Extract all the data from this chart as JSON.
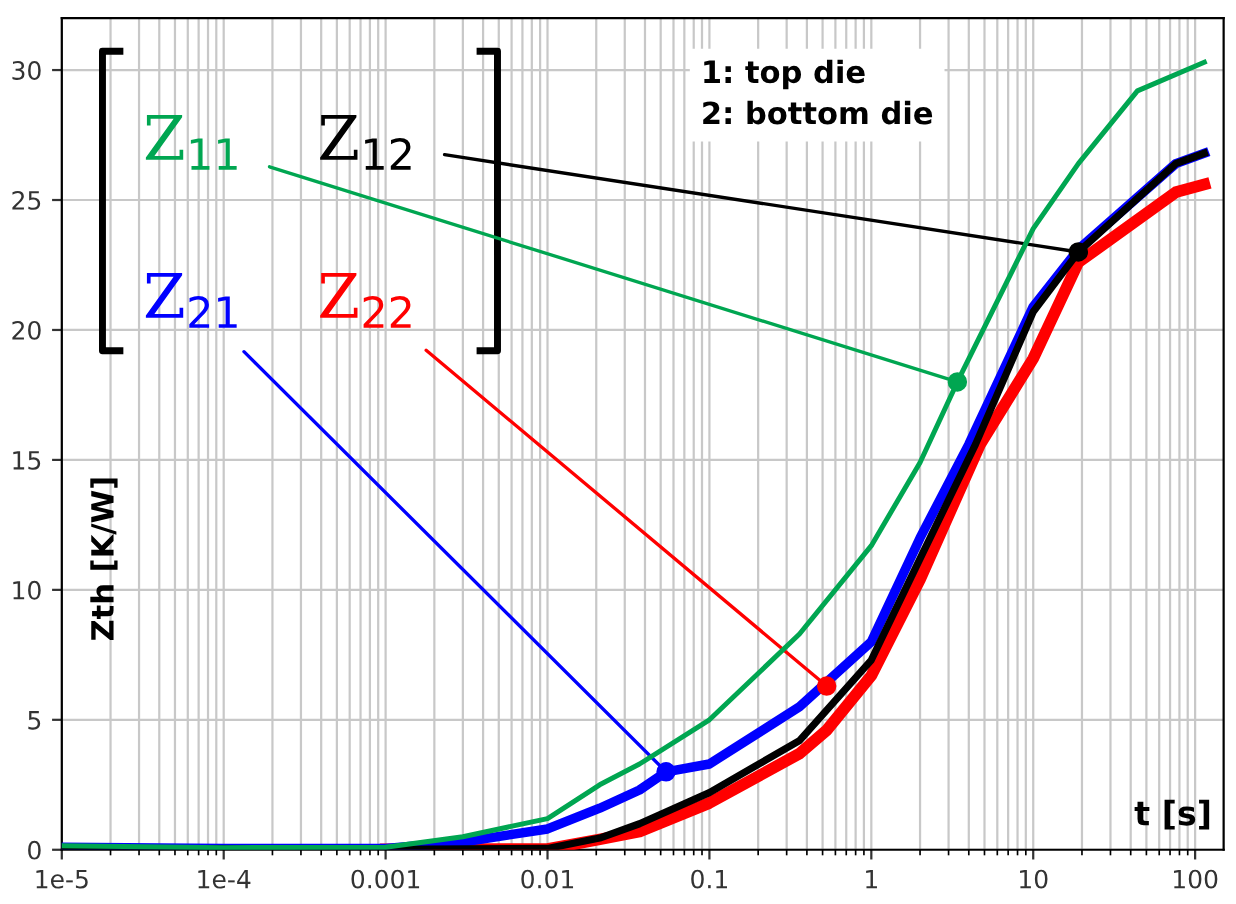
{
  "chart_data": {
    "type": "line",
    "log": "x",
    "grid": true,
    "xlabel": "t [s]",
    "ylabel": "Zth [K/W]",
    "xlim": [
      1e-05,
      150
    ],
    "ylim": [
      0,
      32
    ],
    "xticks": [
      {
        "value": 1e-05,
        "label": "1e-5"
      },
      {
        "value": 0.0001,
        "label": "1e-4"
      },
      0.001,
      0.01,
      0.1,
      1,
      10,
      100
    ],
    "yticks": [
      0,
      5,
      10,
      15,
      20,
      25,
      30
    ],
    "series": [
      {
        "color": "#00a651",
        "x": [
          1e-05,
          0.0001,
          0.001,
          0.003,
          0.01,
          0.021,
          0.037,
          0.1,
          0.36,
          1,
          2,
          3.4,
          10,
          19,
          44,
          114
        ],
        "values": [
          0.15,
          0.08,
          0.1,
          0.5,
          1.2,
          2.5,
          3.3,
          5.0,
          8.3,
          11.7,
          14.9,
          18.0,
          23.9,
          26.4,
          29.2,
          30.3
        ]
      },
      {
        "color": "#000000",
        "x": [
          1e-05,
          0.0001,
          0.001,
          0.01,
          0.021,
          0.037,
          0.1,
          0.36,
          1,
          2,
          4.4,
          5.6,
          10,
          19,
          76,
          114
        ],
        "values": [
          0.05,
          0.03,
          0.02,
          0.05,
          0.45,
          1.0,
          2.2,
          4.2,
          7.3,
          11.2,
          15.6,
          17.1,
          20.7,
          23.0,
          26.4,
          26.8
        ]
      },
      {
        "color": "#0000ff",
        "x": [
          1e-05,
          0.0001,
          0.001,
          0.003,
          0.01,
          0.021,
          0.037,
          0.054,
          0.1,
          0.36,
          1,
          2,
          4,
          10,
          19,
          76,
          114
        ],
        "values": [
          0.1,
          0.05,
          0.05,
          0.3,
          0.8,
          1.6,
          2.3,
          3.0,
          3.3,
          5.5,
          8.0,
          12.0,
          15.6,
          20.9,
          23.1,
          26.4,
          26.8
        ]
      },
      {
        "color": "#ff0000",
        "x": [
          0.001,
          0.01,
          0.021,
          0.037,
          0.1,
          0.36,
          0.53,
          1,
          2,
          4.7,
          10,
          19,
          76,
          114
        ],
        "values": [
          0.02,
          0.03,
          0.4,
          0.7,
          1.8,
          3.7,
          4.6,
          6.7,
          10.4,
          15.6,
          18.9,
          22.6,
          25.3,
          25.6
        ]
      }
    ],
    "annotations": [
      {
        "text": "Z$_{11}$",
        "x": 3.4,
        "y": 18.0
      },
      {
        "text": "Z$_{12}$",
        "x": 19,
        "y": 23.0
      },
      {
        "text": "Z$_{21}$",
        "x": 0.054,
        "y": 3.0
      },
      {
        "text": "Z$_{22}$",
        "x": 0.53,
        "y": 6.3
      },
      "1: top die\n2: bottom die"
    ]
  }
}
